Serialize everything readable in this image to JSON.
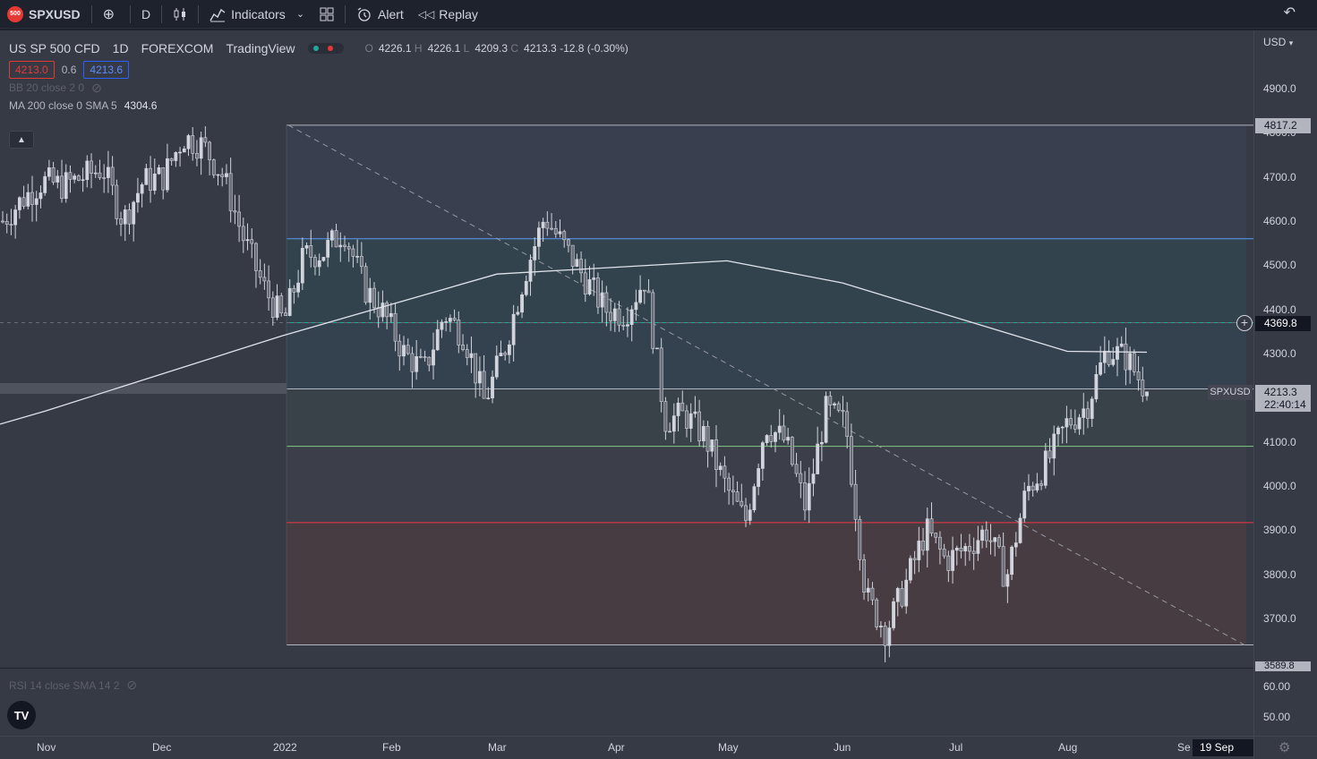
{
  "toolbar": {
    "symbol_badge": "500",
    "symbol": "SPXUSD",
    "interval": "D",
    "indicators_label": "Indicators",
    "alert_label": "Alert",
    "replay_label": "Replay"
  },
  "legend": {
    "name": "US SP 500 CFD",
    "interval": "1D",
    "exchange": "FOREXCOM",
    "source": "TradingView",
    "o_label": "O",
    "o_value": "4226.1",
    "h_label": "H",
    "h_value": "4226.1",
    "l_label": "L",
    "l_value": "4209.3",
    "c_label": "C",
    "c_value": "4213.3",
    "change": "-12.8 (-0.30%)",
    "bid": "4213.0",
    "spread": "0.6",
    "ask": "4213.6",
    "bb_indicator": "BB 20 close 2 0",
    "ma_indicator": "MA 200 close 0 SMA 5",
    "ma_value": "4304.6"
  },
  "rsi_legend": "RSI 14 close SMA 14 2",
  "price_scale": {
    "currency": "USD",
    "labels": [
      "4900.0",
      "4800.0",
      "4700.0",
      "4600.0",
      "4500.0",
      "4400.0",
      "4300.0",
      "4200.0",
      "4100.0",
      "4000.0",
      "3900.0",
      "3800.0",
      "3700.0"
    ],
    "tag_high": "4817.2",
    "tag_cross": "4369.8",
    "tag_last": "4213.3",
    "tag_countdown": "22:40:14",
    "tag_low": "3589.8",
    "symbol_tag": "SPXUSD",
    "rsi_labels": [
      "60.00",
      "50.00"
    ]
  },
  "time_scale": {
    "labels": [
      "Nov",
      "Dec",
      "2022",
      "Feb",
      "Mar",
      "Apr",
      "May",
      "Jun",
      "Jul",
      "Aug",
      "Se"
    ],
    "crosshair_date": "19 Sep '22"
  },
  "colors": {
    "background": "#363a45",
    "bull": "#d1d4dc",
    "bear": "#6a6d78",
    "level_blue": "#5b9cf6",
    "level_teal": "#22ab94",
    "level_green": "#81c784",
    "level_red": "#f23645",
    "ma_line": "#e0e3eb"
  },
  "chart_data": {
    "type": "candlestick",
    "symbol": "SPXUSD",
    "interval": "1D",
    "ylim": [
      3590,
      4940
    ],
    "x": [
      "Nov",
      "Dec",
      "2022",
      "Feb",
      "Mar",
      "Apr",
      "May",
      "Jun",
      "Jul",
      "Aug",
      "Se"
    ],
    "close_path": [
      4600,
      4650,
      4690,
      4680,
      4700,
      4720,
      4600,
      4690,
      4700,
      4790,
      4770,
      4700,
      4560,
      4450,
      4370,
      4520,
      4530,
      4580,
      4450,
      4390,
      4300,
      4260,
      4390,
      4340,
      4190,
      4310,
      4480,
      4610,
      4540,
      4470,
      4400,
      4390,
      4470,
      4150,
      4160,
      4110,
      4000,
      3920,
      4140,
      4100,
      3950,
      4170,
      4140,
      3750,
      3670,
      3780,
      3900,
      3830,
      3860,
      3900,
      3790,
      3990,
      4050,
      4140,
      4180,
      4310,
      4290,
      4213
    ],
    "ma200": [
      {
        "x": "Nov",
        "y": 4170
      },
      {
        "x": "2022",
        "y": 4340
      },
      {
        "x": "Mar",
        "y": 4480
      },
      {
        "x": "May",
        "y": 4510
      },
      {
        "x": "Jun",
        "y": 4460
      },
      {
        "x": "Jul",
        "y": 4380
      },
      {
        "x": "Aug",
        "y": 4305
      }
    ],
    "fib_levels": [
      {
        "price": 4817.2
      },
      {
        "price": 4560
      },
      {
        "price": 4369.8
      },
      {
        "price": 4220
      },
      {
        "price": 4090
      },
      {
        "price": 3917
      },
      {
        "price": 3640
      }
    ],
    "trendline": {
      "from": 4817.2,
      "to": 3640
    },
    "last": 4213.3
  }
}
